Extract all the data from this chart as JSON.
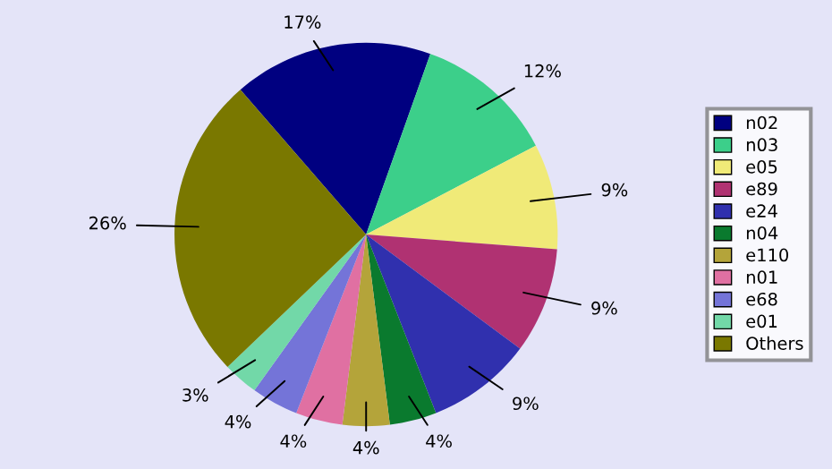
{
  "chart_data": {
    "type": "pie",
    "categories": [
      "n02",
      "n03",
      "e05",
      "e89",
      "e24",
      "n04",
      "e110",
      "n01",
      "e68",
      "e01",
      "Others"
    ],
    "values": [
      17,
      12,
      9,
      9,
      9,
      4,
      4,
      4,
      4,
      3,
      26
    ],
    "colors": [
      "#000080",
      "#3ccf8a",
      "#f0ea78",
      "#b03272",
      "#3030ae",
      "#0a7a2e",
      "#b4a43a",
      "#e070a2",
      "#7474d8",
      "#72d8a8",
      "#7a7800"
    ],
    "value_labels": [
      "17%",
      "12%",
      "9%",
      "9%",
      "9%",
      "4%",
      "4%",
      "4%",
      "4%",
      "3%",
      "26%"
    ],
    "legend": "right"
  }
}
